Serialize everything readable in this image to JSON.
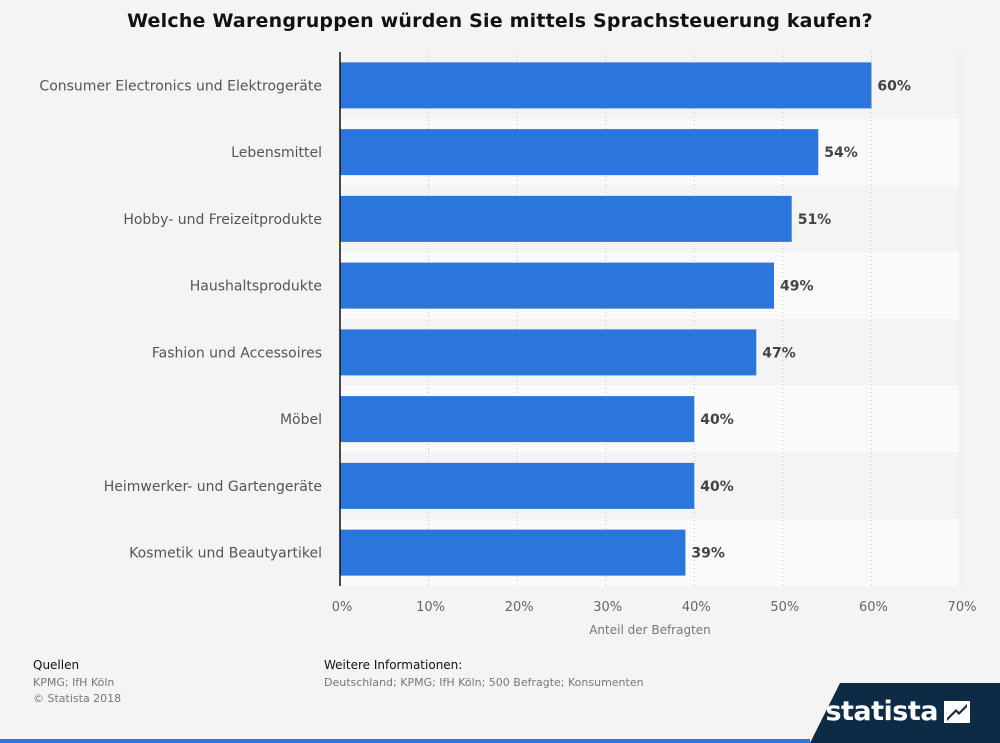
{
  "title": "Welche Warengruppen würden Sie mittels Sprachsteuerung kaufen?",
  "chart_data": {
    "type": "bar",
    "orientation": "horizontal",
    "categories": [
      "Consumer Electronics und Elektrogeräte",
      "Lebensmittel",
      "Hobby- und Freizeitprodukte",
      "Haushaltsprodukte",
      "Fashion und Accessoires",
      "Möbel",
      "Heimwerker- und Gartengeräte",
      "Kosmetik und Beautyartikel"
    ],
    "values": [
      60,
      54,
      51,
      49,
      47,
      40,
      40,
      39
    ],
    "value_labels": [
      "60%",
      "54%",
      "51%",
      "49%",
      "47%",
      "40%",
      "40%",
      "39%"
    ],
    "xlabel": "Anteil der Befragten",
    "ylabel": "",
    "xlim": [
      0,
      70
    ],
    "xticks": [
      0,
      10,
      20,
      30,
      40,
      50,
      60,
      70
    ],
    "xtick_labels": [
      "0%",
      "10%",
      "20%",
      "30%",
      "40%",
      "50%",
      "60%",
      "70%"
    ],
    "grid": "vertical dotted",
    "bar_color": "#2a76dc"
  },
  "footer": {
    "sources_heading": "Quellen",
    "sources": "KPMG; IfH Köln",
    "copyright": "© Statista 2018",
    "info_heading": "Weitere Informationen:",
    "info": "Deutschland; KPMG; IfH Köln; 500 Befragte; Konsumenten"
  },
  "logo": {
    "text": "statista",
    "icon": "statista-logo-icon"
  },
  "colors": {
    "accent": "#2a76dc",
    "logo_bg": "#0d2b45",
    "background": "#f4f4f4"
  }
}
